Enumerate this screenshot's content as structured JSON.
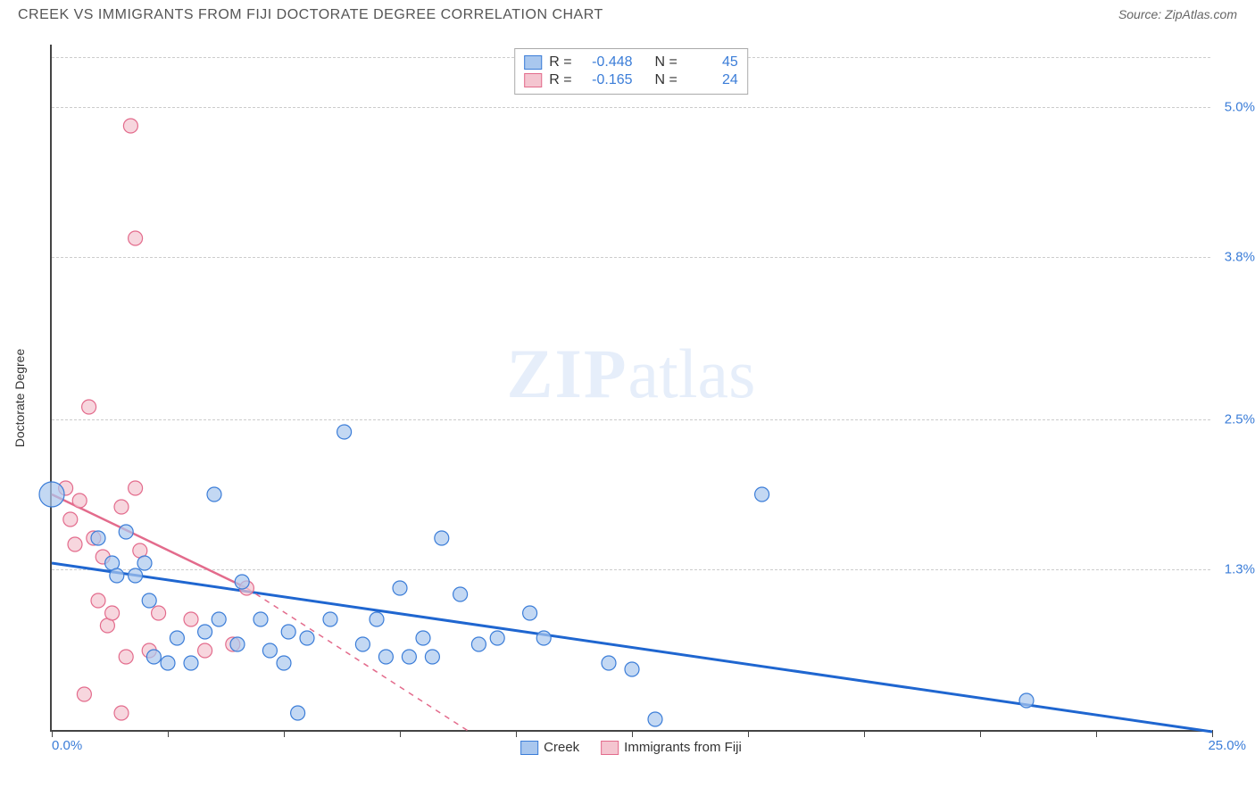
{
  "title": "CREEK VS IMMIGRANTS FROM FIJI DOCTORATE DEGREE CORRELATION CHART",
  "source_label": "Source: ",
  "source_value": "ZipAtlas.com",
  "y_axis_title": "Doctorate Degree",
  "watermark_zip": "ZIP",
  "watermark_atlas": "atlas",
  "chart": {
    "type": "scatter",
    "background_color": "#ffffff",
    "grid_color": "#cccccc",
    "axis_color": "#444444",
    "x_range": [
      0.0,
      25.0
    ],
    "y_range": [
      0.0,
      5.5
    ],
    "y_grid_ticks": [
      {
        "value": 5.0,
        "label": "5.0%"
      },
      {
        "value": 3.8,
        "label": "3.8%"
      },
      {
        "value": 2.5,
        "label": "2.5%"
      },
      {
        "value": 1.3,
        "label": "1.3%"
      }
    ],
    "x_tick_positions": [
      0.0,
      2.5,
      5.0,
      7.5,
      10.0,
      12.5,
      15.0,
      17.5,
      20.0,
      22.5,
      25.0
    ],
    "x_min_label": "0.0%",
    "x_max_label": "25.0%",
    "series": {
      "blue": {
        "label": "Creek",
        "R": "-0.448",
        "N": "45",
        "fill": "#a9c7ee",
        "stroke": "#3b7dd8",
        "line_color": "#1f66d0",
        "trend": {
          "x1": 0.0,
          "y1": 1.35,
          "x2": 25.0,
          "y2": 0.0
        },
        "points": [
          {
            "x": 0.0,
            "y": 1.9,
            "r": 14
          },
          {
            "x": 1.0,
            "y": 1.55,
            "r": 8
          },
          {
            "x": 1.3,
            "y": 1.35,
            "r": 8
          },
          {
            "x": 1.4,
            "y": 1.25,
            "r": 8
          },
          {
            "x": 1.6,
            "y": 1.6,
            "r": 8
          },
          {
            "x": 1.8,
            "y": 1.25,
            "r": 8
          },
          {
            "x": 2.0,
            "y": 1.35,
            "r": 8
          },
          {
            "x": 2.1,
            "y": 1.05,
            "r": 8
          },
          {
            "x": 2.2,
            "y": 0.6,
            "r": 8
          },
          {
            "x": 2.5,
            "y": 0.55,
            "r": 8
          },
          {
            "x": 2.7,
            "y": 0.75,
            "r": 8
          },
          {
            "x": 3.0,
            "y": 0.55,
            "r": 8
          },
          {
            "x": 3.3,
            "y": 0.8,
            "r": 8
          },
          {
            "x": 3.5,
            "y": 1.9,
            "r": 8
          },
          {
            "x": 3.6,
            "y": 0.9,
            "r": 8
          },
          {
            "x": 4.0,
            "y": 0.7,
            "r": 8
          },
          {
            "x": 4.1,
            "y": 1.2,
            "r": 8
          },
          {
            "x": 4.5,
            "y": 0.9,
            "r": 8
          },
          {
            "x": 4.7,
            "y": 0.65,
            "r": 8
          },
          {
            "x": 5.0,
            "y": 0.55,
            "r": 8
          },
          {
            "x": 5.1,
            "y": 0.8,
            "r": 8
          },
          {
            "x": 5.3,
            "y": 0.15,
            "r": 8
          },
          {
            "x": 5.5,
            "y": 0.75,
            "r": 8
          },
          {
            "x": 6.0,
            "y": 0.9,
            "r": 8
          },
          {
            "x": 6.3,
            "y": 2.4,
            "r": 8
          },
          {
            "x": 6.7,
            "y": 0.7,
            "r": 8
          },
          {
            "x": 7.0,
            "y": 0.9,
            "r": 8
          },
          {
            "x": 7.2,
            "y": 0.6,
            "r": 8
          },
          {
            "x": 7.5,
            "y": 1.15,
            "r": 8
          },
          {
            "x": 7.7,
            "y": 0.6,
            "r": 8
          },
          {
            "x": 8.0,
            "y": 0.75,
            "r": 8
          },
          {
            "x": 8.2,
            "y": 0.6,
            "r": 8
          },
          {
            "x": 8.4,
            "y": 1.55,
            "r": 8
          },
          {
            "x": 8.8,
            "y": 1.1,
            "r": 8
          },
          {
            "x": 9.2,
            "y": 0.7,
            "r": 8
          },
          {
            "x": 9.6,
            "y": 0.75,
            "r": 8
          },
          {
            "x": 10.3,
            "y": 0.95,
            "r": 8
          },
          {
            "x": 10.6,
            "y": 0.75,
            "r": 8
          },
          {
            "x": 12.0,
            "y": 0.55,
            "r": 8
          },
          {
            "x": 12.5,
            "y": 0.5,
            "r": 8
          },
          {
            "x": 13.0,
            "y": 0.1,
            "r": 8
          },
          {
            "x": 15.3,
            "y": 1.9,
            "r": 8
          },
          {
            "x": 21.0,
            "y": 0.25,
            "r": 8
          }
        ]
      },
      "pink": {
        "label": "Immigrants from Fiji",
        "R": "-0.165",
        "N": "24",
        "fill": "#f4c5d0",
        "stroke": "#e36b8c",
        "line_color": "#e36b8c",
        "trend_solid": {
          "x1": 0.0,
          "y1": 1.9,
          "x2": 4.2,
          "y2": 1.15
        },
        "trend_dashed": {
          "x1": 4.2,
          "y1": 1.15,
          "x2": 9.0,
          "y2": 0.0
        },
        "points": [
          {
            "x": 0.3,
            "y": 1.95,
            "r": 8
          },
          {
            "x": 0.4,
            "y": 1.7,
            "r": 8
          },
          {
            "x": 0.5,
            "y": 1.5,
            "r": 8
          },
          {
            "x": 0.6,
            "y": 1.85,
            "r": 8
          },
          {
            "x": 0.7,
            "y": 0.3,
            "r": 8
          },
          {
            "x": 0.8,
            "y": 2.6,
            "r": 8
          },
          {
            "x": 0.9,
            "y": 1.55,
            "r": 8
          },
          {
            "x": 1.0,
            "y": 1.05,
            "r": 8
          },
          {
            "x": 1.1,
            "y": 1.4,
            "r": 8
          },
          {
            "x": 1.2,
            "y": 0.85,
            "r": 8
          },
          {
            "x": 1.3,
            "y": 0.95,
            "r": 8
          },
          {
            "x": 1.5,
            "y": 1.8,
            "r": 8
          },
          {
            "x": 1.5,
            "y": 0.15,
            "r": 8
          },
          {
            "x": 1.6,
            "y": 0.6,
            "r": 8
          },
          {
            "x": 1.7,
            "y": 4.85,
            "r": 8
          },
          {
            "x": 1.8,
            "y": 3.95,
            "r": 8
          },
          {
            "x": 1.8,
            "y": 1.95,
            "r": 8
          },
          {
            "x": 1.9,
            "y": 1.45,
            "r": 8
          },
          {
            "x": 2.1,
            "y": 0.65,
            "r": 8
          },
          {
            "x": 2.3,
            "y": 0.95,
            "r": 8
          },
          {
            "x": 3.0,
            "y": 0.9,
            "r": 8
          },
          {
            "x": 3.3,
            "y": 0.65,
            "r": 8
          },
          {
            "x": 3.9,
            "y": 0.7,
            "r": 8
          },
          {
            "x": 4.2,
            "y": 1.15,
            "r": 8
          }
        ]
      }
    }
  },
  "legend_labels": {
    "R": "R =",
    "N": "N ="
  }
}
